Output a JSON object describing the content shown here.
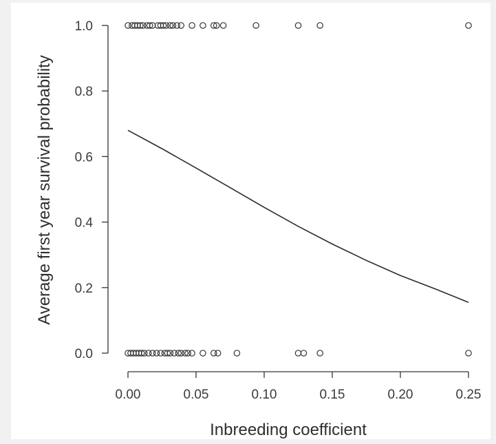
{
  "chart_data": {
    "type": "scatter",
    "title": "",
    "xlabel": "Inbreeding coefficient",
    "ylabel": "Average first year survival probability",
    "xlim": [
      0.0,
      0.25
    ],
    "ylim": [
      0.0,
      1.0
    ],
    "x_ticks": [
      0.0,
      0.05,
      0.1,
      0.15,
      0.2,
      0.25
    ],
    "x_tick_labels": [
      "0.00",
      "0.05",
      "0.10",
      "0.15",
      "0.20",
      "0.25"
    ],
    "y_ticks": [
      0.0,
      0.2,
      0.4,
      0.6,
      0.8,
      1.0
    ],
    "y_tick_labels": [
      "0.0",
      "0.2",
      "0.4",
      "0.6",
      "0.8",
      "1.0"
    ],
    "grid": false,
    "points": [
      {
        "x": 0.0,
        "y": 1
      },
      {
        "x": 0.003,
        "y": 1
      },
      {
        "x": 0.005,
        "y": 1
      },
      {
        "x": 0.007,
        "y": 1
      },
      {
        "x": 0.009,
        "y": 1
      },
      {
        "x": 0.011,
        "y": 1
      },
      {
        "x": 0.014,
        "y": 1
      },
      {
        "x": 0.016,
        "y": 1
      },
      {
        "x": 0.018,
        "y": 1
      },
      {
        "x": 0.022,
        "y": 1
      },
      {
        "x": 0.024,
        "y": 1
      },
      {
        "x": 0.026,
        "y": 1
      },
      {
        "x": 0.028,
        "y": 1
      },
      {
        "x": 0.031,
        "y": 1
      },
      {
        "x": 0.033,
        "y": 1
      },
      {
        "x": 0.036,
        "y": 1
      },
      {
        "x": 0.039,
        "y": 1
      },
      {
        "x": 0.047,
        "y": 1
      },
      {
        "x": 0.055,
        "y": 1
      },
      {
        "x": 0.063,
        "y": 1
      },
      {
        "x": 0.065,
        "y": 1
      },
      {
        "x": 0.07,
        "y": 1
      },
      {
        "x": 0.094,
        "y": 1
      },
      {
        "x": 0.125,
        "y": 1
      },
      {
        "x": 0.141,
        "y": 1
      },
      {
        "x": 0.25,
        "y": 1
      },
      {
        "x": 0.0,
        "y": 0
      },
      {
        "x": 0.002,
        "y": 0
      },
      {
        "x": 0.004,
        "y": 0
      },
      {
        "x": 0.006,
        "y": 0
      },
      {
        "x": 0.008,
        "y": 0
      },
      {
        "x": 0.01,
        "y": 0
      },
      {
        "x": 0.012,
        "y": 0
      },
      {
        "x": 0.015,
        "y": 0
      },
      {
        "x": 0.018,
        "y": 0
      },
      {
        "x": 0.021,
        "y": 0
      },
      {
        "x": 0.024,
        "y": 0
      },
      {
        "x": 0.027,
        "y": 0
      },
      {
        "x": 0.029,
        "y": 0
      },
      {
        "x": 0.031,
        "y": 0
      },
      {
        "x": 0.034,
        "y": 0
      },
      {
        "x": 0.037,
        "y": 0
      },
      {
        "x": 0.039,
        "y": 0
      },
      {
        "x": 0.042,
        "y": 0
      },
      {
        "x": 0.044,
        "y": 0
      },
      {
        "x": 0.047,
        "y": 0
      },
      {
        "x": 0.055,
        "y": 0
      },
      {
        "x": 0.063,
        "y": 0
      },
      {
        "x": 0.066,
        "y": 0
      },
      {
        "x": 0.08,
        "y": 0
      },
      {
        "x": 0.125,
        "y": 0
      },
      {
        "x": 0.129,
        "y": 0
      },
      {
        "x": 0.141,
        "y": 0
      },
      {
        "x": 0.25,
        "y": 0
      }
    ],
    "curve": {
      "x": [
        0.0,
        0.025,
        0.05,
        0.075,
        0.1,
        0.125,
        0.15,
        0.175,
        0.2,
        0.225,
        0.25
      ],
      "y": [
        0.68,
        0.624,
        0.565,
        0.505,
        0.445,
        0.387,
        0.333,
        0.283,
        0.237,
        0.197,
        0.155
      ]
    }
  }
}
